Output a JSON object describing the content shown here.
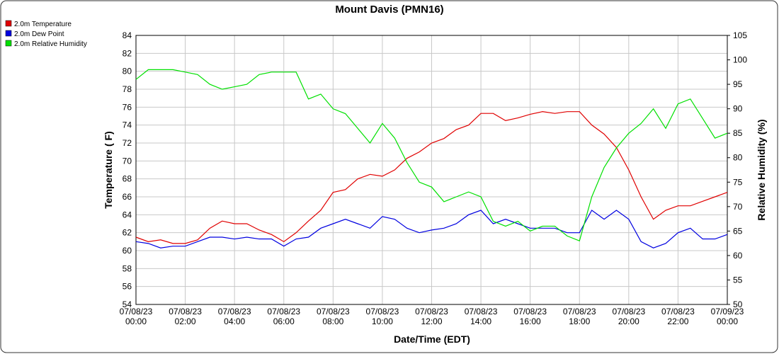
{
  "chart_data": {
    "type": "line",
    "title": "Mount Davis (PMN16)",
    "xlabel": "Date/Time (EDT)",
    "ylabel": "Temperature ( F)",
    "y2label": "Relative Humidity (%)",
    "x": [
      0,
      0.5,
      1,
      1.5,
      2,
      2.5,
      3,
      3.5,
      4,
      4.5,
      5,
      5.5,
      6,
      6.5,
      7,
      7.5,
      8,
      8.5,
      9,
      9.5,
      10,
      10.5,
      11,
      11.5,
      12,
      12.5,
      13,
      13.5,
      14,
      14.5,
      15,
      15.5,
      16,
      16.5,
      17,
      17.5,
      18,
      18.5,
      19,
      19.5,
      20,
      20.5,
      21,
      21.5,
      22,
      22.5,
      23,
      23.5,
      24
    ],
    "xlim": [
      0,
      24
    ],
    "xticks": [
      {
        "value": 0,
        "label": "07/08/23 00:00"
      },
      {
        "value": 2,
        "label": "07/08/23 02:00"
      },
      {
        "value": 4,
        "label": "07/08/23 04:00"
      },
      {
        "value": 6,
        "label": "07/08/23 06:00"
      },
      {
        "value": 8,
        "label": "07/08/23 08:00"
      },
      {
        "value": 10,
        "label": "07/08/23 10:00"
      },
      {
        "value": 12,
        "label": "07/08/23 12:00"
      },
      {
        "value": 14,
        "label": "07/08/23 14:00"
      },
      {
        "value": 16,
        "label": "07/08/23 16:00"
      },
      {
        "value": 18,
        "label": "07/08/23 18:00"
      },
      {
        "value": 20,
        "label": "07/08/23 20:00"
      },
      {
        "value": 22,
        "label": "07/08/23 22:00"
      },
      {
        "value": 24,
        "label": "07/09/23 00:00"
      }
    ],
    "ylim": [
      54,
      84
    ],
    "yticks": [
      54,
      56,
      58,
      60,
      62,
      64,
      66,
      68,
      70,
      72,
      74,
      76,
      78,
      80,
      82,
      84
    ],
    "y2lim": [
      50,
      105
    ],
    "y2ticks": [
      50,
      55,
      60,
      65,
      70,
      75,
      80,
      85,
      90,
      95,
      100,
      105
    ],
    "grid": true,
    "legend": "top-left",
    "series": [
      {
        "name": "2.0m Temperature",
        "color": "#e00000",
        "values": [
          61.5,
          61,
          61.2,
          60.8,
          60.8,
          61.2,
          62.5,
          63.3,
          63,
          63,
          62.3,
          61.8,
          61,
          62,
          63.3,
          64.5,
          66.5,
          66.8,
          68,
          68.5,
          68.3,
          69,
          70.3,
          71,
          72,
          72.5,
          73.5,
          74,
          75.3,
          75.3,
          74.5,
          74.8,
          75.2,
          75.5,
          75.3,
          75.5,
          75.5,
          74,
          73,
          71.5,
          69,
          66,
          63.5,
          64.5,
          65,
          65,
          65.5,
          66,
          66.5
        ]
      },
      {
        "name": "2.0m Dew Point",
        "color": "#0000e0",
        "values": [
          61,
          60.8,
          60.3,
          60.5,
          60.5,
          61,
          61.5,
          61.5,
          61.3,
          61.5,
          61.3,
          61.3,
          60.5,
          61.3,
          61.5,
          62.5,
          63,
          63.5,
          63,
          62.5,
          63.8,
          63.5,
          62.5,
          62,
          62.3,
          62.5,
          63,
          64,
          64.5,
          63,
          63.5,
          63,
          62.5,
          62.5,
          62.5,
          62,
          62,
          64.5,
          63.5,
          64.5,
          63.5,
          61,
          60.3,
          60.8,
          62,
          62.5,
          61.3,
          61.3,
          61.8
        ]
      },
      {
        "name": "2.0m Relative Humidity",
        "color": "#00e000",
        "axis": "y2",
        "values": [
          96,
          98,
          98,
          98,
          97.5,
          97,
          95,
          94,
          94.5,
          95,
          97,
          97.5,
          97.5,
          97.5,
          92,
          93,
          90,
          89,
          86,
          83,
          87,
          84,
          79,
          75,
          74,
          71,
          72,
          73,
          72,
          67,
          66,
          67,
          65,
          66,
          66,
          64,
          63,
          72,
          78,
          82,
          85,
          87,
          90,
          86,
          91,
          92,
          88,
          84,
          85
        ]
      }
    ]
  }
}
